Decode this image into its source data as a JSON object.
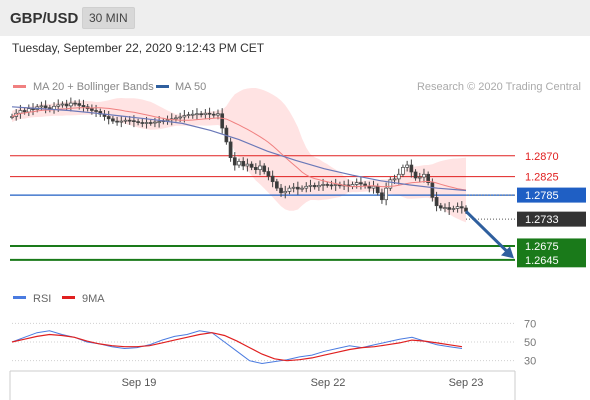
{
  "header": {
    "symbol": "GBP/USD",
    "interval": "30 MIN",
    "datetime": "Tuesday, September 22, 2020 9:12:43 PM CET",
    "credit": "Research © 2020 Trading Central"
  },
  "legend": {
    "ma20_bb": "MA 20 + Bollinger Bands",
    "ma50": "MA 50",
    "rsi": "RSI",
    "rsi_ma": "9MA"
  },
  "colors": {
    "resistance": "#e02020",
    "support": "#1a7a1a",
    "pivot": "#1f5fc4",
    "current": "#333333",
    "bollinger": "#ffd9d9",
    "ma20": "#f08080",
    "ma50": "#6a78b8",
    "rsi": "#4a7be0",
    "rsi_ma": "#e02020",
    "arrow": "#2f5f9e"
  },
  "chart_data": [
    {
      "type": "candlestick",
      "title": "GBP/USD",
      "x_ticks": [
        "Sep 19",
        "Sep 22",
        "Sep 23"
      ],
      "y_range": [
        1.261,
        1.2995
      ],
      "close_series": [
        1.2955,
        1.2962,
        1.2968,
        1.2965,
        1.2972,
        1.297,
        1.2976,
        1.2978,
        1.2974,
        1.297,
        1.2977,
        1.298,
        1.2982,
        1.2978,
        1.2984,
        1.2983,
        1.2979,
        1.2976,
        1.2972,
        1.2968,
        1.2966,
        1.296,
        1.2955,
        1.295,
        1.2945,
        1.2944,
        1.2945,
        1.2947,
        1.2946,
        1.2944,
        1.2942,
        1.2941,
        1.2942,
        1.2941,
        1.2943,
        1.2944,
        1.2946,
        1.2948,
        1.295,
        1.2952,
        1.2954,
        1.2957,
        1.2959,
        1.296,
        1.2961,
        1.2959,
        1.2962,
        1.296,
        1.2958,
        1.2961,
        1.293,
        1.29,
        1.2866,
        1.285,
        1.2858,
        1.2848,
        1.2852,
        1.2845,
        1.284,
        1.2848,
        1.2836,
        1.2826,
        1.2814,
        1.28,
        1.279,
        1.2793,
        1.28,
        1.2802,
        1.2798,
        1.28,
        1.2804,
        1.2806,
        1.2803,
        1.2806,
        1.2808,
        1.2807,
        1.2806,
        1.2808,
        1.2805,
        1.2807,
        1.2804,
        1.2808,
        1.2812,
        1.2809,
        1.2805,
        1.28,
        1.2804,
        1.279,
        1.2775,
        1.28,
        1.2818,
        1.282,
        1.283,
        1.2845,
        1.285,
        1.2835,
        1.2822,
        1.2824,
        1.283,
        1.2812,
        1.278,
        1.2762,
        1.2757,
        1.2758,
        1.2754,
        1.2756,
        1.276,
        1.2757,
        1.275
      ],
      "series": [
        {
          "name": "MA 50",
          "values": [
            1.2976,
            1.2972,
            1.2968,
            1.2962,
            1.2955,
            1.2948,
            1.294,
            1.2925,
            1.2905,
            1.288,
            1.286,
            1.2842,
            1.2828,
            1.2816,
            1.2807,
            1.28,
            1.2795
          ]
        }
      ],
      "levels": [
        {
          "label": "1.2870",
          "value": 1.287,
          "kind": "resistance"
        },
        {
          "label": "1.2825",
          "value": 1.2825,
          "kind": "resistance"
        },
        {
          "label": "1.2785",
          "value": 1.2785,
          "kind": "pivot"
        },
        {
          "label": "1.2733",
          "value": 1.2733,
          "kind": "current"
        },
        {
          "label": "1.2675",
          "value": 1.2675,
          "kind": "support"
        },
        {
          "label": "1.2645",
          "value": 1.2645,
          "kind": "support"
        }
      ]
    },
    {
      "type": "line",
      "title": "RSI",
      "y_range": [
        20,
        80
      ],
      "y_ticks": [
        70,
        50,
        30
      ],
      "series": [
        {
          "name": "RSI",
          "values": [
            50,
            55,
            60,
            62,
            58,
            55,
            50,
            48,
            45,
            43,
            44,
            47,
            52,
            56,
            58,
            62,
            60,
            50,
            40,
            30,
            27,
            29,
            31,
            34,
            36,
            40,
            43,
            46,
            44,
            47,
            50,
            53,
            55,
            51,
            47,
            45,
            43
          ]
        },
        {
          "name": "9MA",
          "values": [
            50,
            53,
            56,
            58,
            57,
            55,
            51,
            48,
            46,
            45,
            45,
            46,
            49,
            52,
            55,
            58,
            60,
            57,
            51,
            44,
            37,
            32,
            30,
            31,
            33,
            36,
            39,
            42,
            44,
            45,
            47,
            49,
            52,
            51,
            49,
            47,
            45
          ]
        }
      ]
    }
  ]
}
